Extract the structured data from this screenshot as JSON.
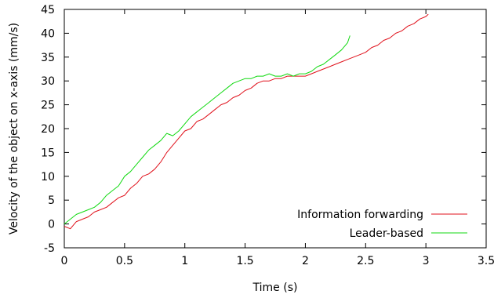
{
  "chart_data": {
    "type": "line",
    "xlabel": "Time (s)",
    "ylabel": "Velocity of the object on x-axis (mm/s)",
    "xlim": [
      0,
      3.5
    ],
    "ylim": [
      -5,
      45
    ],
    "xticks": [
      0,
      0.5,
      1,
      1.5,
      2,
      2.5,
      3,
      3.5
    ],
    "xtick_labels": [
      "0",
      "0.5",
      "1",
      "1.5",
      "2",
      "2.5",
      "3",
      "3.5"
    ],
    "yticks": [
      -5,
      0,
      5,
      10,
      15,
      20,
      25,
      30,
      35,
      40,
      45
    ],
    "ytick_labels": [
      "-5",
      "0",
      "5",
      "10",
      "15",
      "20",
      "25",
      "30",
      "35",
      "40",
      "45"
    ],
    "grid": false,
    "legend_position": "bottom-right",
    "series": [
      {
        "name": "Information forwarding",
        "color": "#e0111b",
        "x": [
          0,
          0.05,
          0.1,
          0.15,
          0.2,
          0.25,
          0.3,
          0.35,
          0.4,
          0.45,
          0.5,
          0.55,
          0.6,
          0.65,
          0.7,
          0.75,
          0.8,
          0.85,
          0.9,
          0.95,
          1.0,
          1.05,
          1.1,
          1.15,
          1.2,
          1.25,
          1.3,
          1.35,
          1.4,
          1.45,
          1.5,
          1.55,
          1.6,
          1.65,
          1.7,
          1.75,
          1.8,
          1.85,
          1.9,
          1.95,
          2.0,
          2.05,
          2.1,
          2.15,
          2.2,
          2.25,
          2.3,
          2.35,
          2.4,
          2.45,
          2.5,
          2.55,
          2.6,
          2.65,
          2.7,
          2.75,
          2.8,
          2.85,
          2.9,
          2.95,
          3.0,
          3.02
        ],
        "y": [
          -0.5,
          -1,
          0.5,
          1,
          1.5,
          2.5,
          3,
          3.5,
          4.5,
          5.5,
          6,
          7.5,
          8.5,
          10,
          10.5,
          11.5,
          13,
          15,
          16.5,
          18,
          19.5,
          20,
          21.5,
          22,
          23,
          24,
          25,
          25.5,
          26.5,
          27,
          28,
          28.5,
          29.5,
          30,
          30,
          30.5,
          30.5,
          31,
          31,
          31,
          31,
          31.5,
          32,
          32.5,
          33,
          33.5,
          34,
          34.5,
          35,
          35.5,
          36,
          37,
          37.5,
          38.5,
          39,
          40,
          40.5,
          41.5,
          42,
          43,
          43.5,
          44
        ]
      },
      {
        "name": "Leader-based",
        "color": "#11d911",
        "x": [
          0,
          0.05,
          0.1,
          0.15,
          0.2,
          0.25,
          0.3,
          0.35,
          0.4,
          0.45,
          0.5,
          0.55,
          0.6,
          0.65,
          0.7,
          0.75,
          0.8,
          0.85,
          0.9,
          0.95,
          1.0,
          1.05,
          1.1,
          1.15,
          1.2,
          1.25,
          1.3,
          1.35,
          1.4,
          1.45,
          1.5,
          1.55,
          1.6,
          1.65,
          1.7,
          1.75,
          1.8,
          1.85,
          1.9,
          1.95,
          2.0,
          2.05,
          2.1,
          2.15,
          2.2,
          2.25,
          2.3,
          2.35,
          2.37
        ],
        "y": [
          0,
          1,
          2,
          2.5,
          3,
          3.5,
          4.5,
          6,
          7,
          8,
          10,
          11,
          12.5,
          14,
          15.5,
          16.5,
          17.5,
          19,
          18.5,
          19.5,
          21,
          22.5,
          23.5,
          24.5,
          25.5,
          26.5,
          27.5,
          28.5,
          29.5,
          30,
          30.5,
          30.5,
          31,
          31,
          31.5,
          31,
          31,
          31.5,
          31,
          31.5,
          31.5,
          32,
          33,
          33.5,
          34.5,
          35.5,
          36.5,
          38,
          39.5
        ]
      }
    ]
  }
}
